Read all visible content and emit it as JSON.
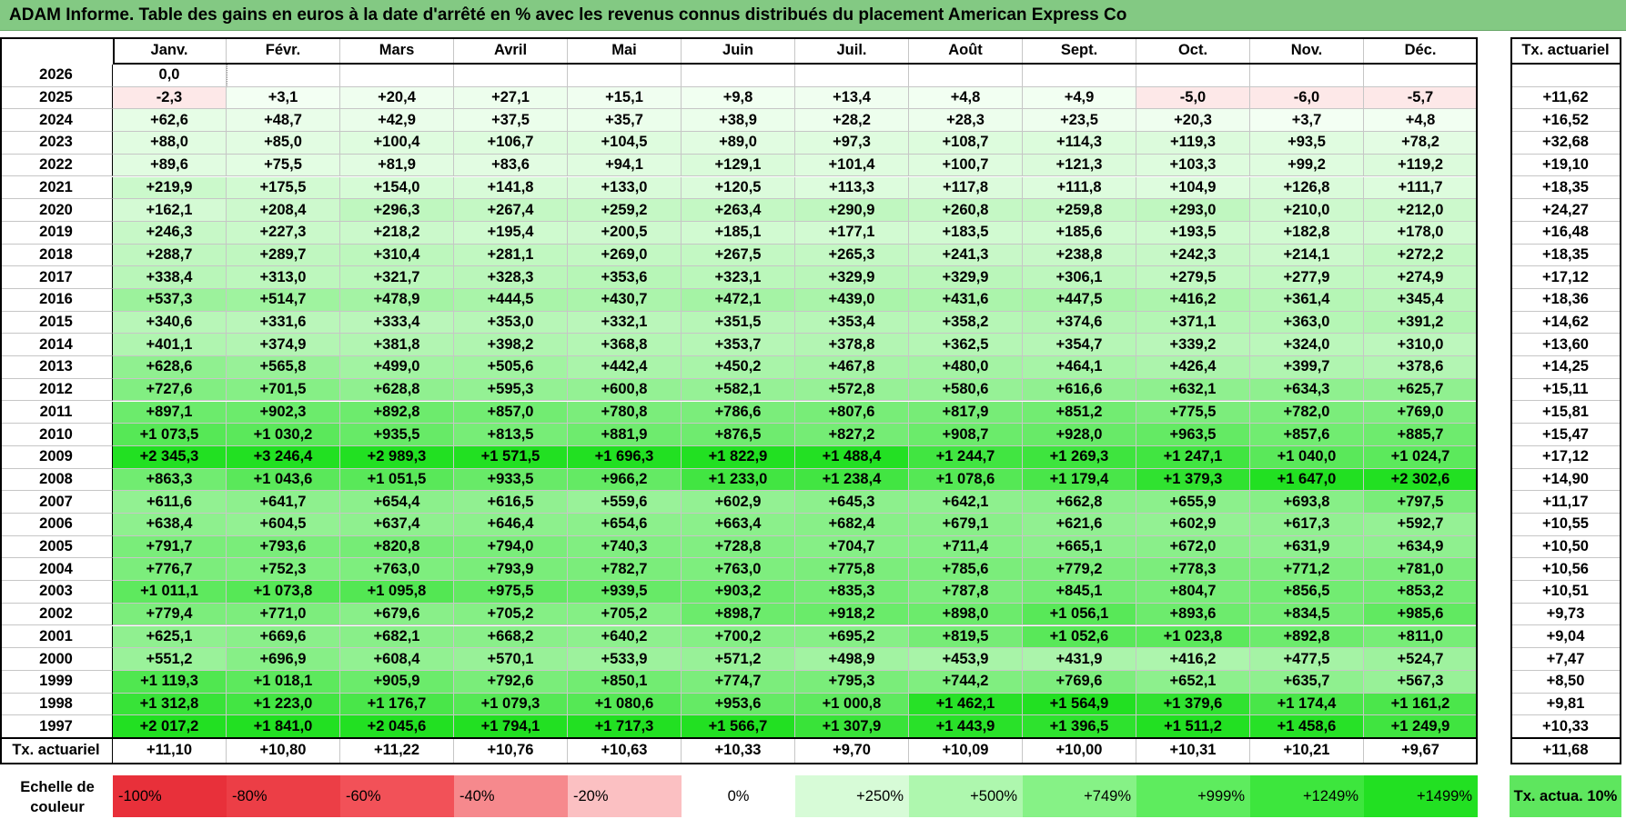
{
  "title": "ADAM Informe. Table des gains en euros à la date d'arrêté en % avec les revenus connus distribués du placement American Express Co",
  "months": [
    "Janv.",
    "Févr.",
    "Mars",
    "Avril",
    "Mai",
    "Juin",
    "Juil.",
    "Août",
    "Sept.",
    "Oct.",
    "Nov.",
    "Déc."
  ],
  "annual_header": "Tx. actuariel",
  "footer_label": "Tx. actuariel",
  "rows": [
    {
      "year": "2026",
      "vals": [
        "0,0",
        null,
        null,
        null,
        null,
        null,
        null,
        null,
        null,
        null,
        null,
        null
      ],
      "rate": ""
    },
    {
      "year": "2025",
      "vals": [
        "-2,3",
        "+3,1",
        "+20,4",
        "+27,1",
        "+15,1",
        "+9,8",
        "+13,4",
        "+4,8",
        "+4,9",
        "-5,0",
        "-6,0",
        "-5,7"
      ],
      "rate": "+11,62"
    },
    {
      "year": "2024",
      "vals": [
        "+62,6",
        "+48,7",
        "+42,9",
        "+37,5",
        "+35,7",
        "+38,9",
        "+28,2",
        "+28,3",
        "+23,5",
        "+20,3",
        "+3,7",
        "+4,8"
      ],
      "rate": "+16,52"
    },
    {
      "year": "2023",
      "vals": [
        "+88,0",
        "+85,0",
        "+100,4",
        "+106,7",
        "+104,5",
        "+89,0",
        "+97,3",
        "+108,7",
        "+114,3",
        "+119,3",
        "+93,5",
        "+78,2"
      ],
      "rate": "+32,68"
    },
    {
      "year": "2022",
      "vals": [
        "+89,6",
        "+75,5",
        "+81,9",
        "+83,6",
        "+94,1",
        "+129,1",
        "+101,4",
        "+100,7",
        "+121,3",
        "+103,3",
        "+99,2",
        "+119,2"
      ],
      "rate": "+19,10"
    },
    {
      "year": "2021",
      "vals": [
        "+219,9",
        "+175,5",
        "+154,0",
        "+141,8",
        "+133,0",
        "+120,5",
        "+113,3",
        "+117,8",
        "+111,8",
        "+104,9",
        "+126,8",
        "+111,7"
      ],
      "rate": "+18,35"
    },
    {
      "year": "2020",
      "vals": [
        "+162,1",
        "+208,4",
        "+296,3",
        "+267,4",
        "+259,2",
        "+263,4",
        "+290,9",
        "+260,8",
        "+259,8",
        "+293,0",
        "+210,0",
        "+212,0"
      ],
      "rate": "+24,27"
    },
    {
      "year": "2019",
      "vals": [
        "+246,3",
        "+227,3",
        "+218,2",
        "+195,4",
        "+200,5",
        "+185,1",
        "+177,1",
        "+183,5",
        "+185,6",
        "+193,5",
        "+182,8",
        "+178,0"
      ],
      "rate": "+16,48"
    },
    {
      "year": "2018",
      "vals": [
        "+288,7",
        "+289,7",
        "+310,4",
        "+281,1",
        "+269,0",
        "+267,5",
        "+265,3",
        "+241,3",
        "+238,8",
        "+242,3",
        "+214,1",
        "+272,2"
      ],
      "rate": "+18,35"
    },
    {
      "year": "2017",
      "vals": [
        "+338,4",
        "+313,0",
        "+321,7",
        "+328,3",
        "+353,6",
        "+323,1",
        "+329,9",
        "+329,9",
        "+306,1",
        "+279,5",
        "+277,9",
        "+274,9"
      ],
      "rate": "+17,12"
    },
    {
      "year": "2016",
      "vals": [
        "+537,3",
        "+514,7",
        "+478,9",
        "+444,5",
        "+430,7",
        "+472,1",
        "+439,0",
        "+431,6",
        "+447,5",
        "+416,2",
        "+361,4",
        "+345,4"
      ],
      "rate": "+18,36"
    },
    {
      "year": "2015",
      "vals": [
        "+340,6",
        "+331,6",
        "+333,4",
        "+353,0",
        "+332,1",
        "+351,5",
        "+353,4",
        "+358,2",
        "+374,6",
        "+371,1",
        "+363,0",
        "+391,2"
      ],
      "rate": "+14,62"
    },
    {
      "year": "2014",
      "vals": [
        "+401,1",
        "+374,9",
        "+381,8",
        "+398,2",
        "+368,8",
        "+353,7",
        "+378,8",
        "+362,5",
        "+354,7",
        "+339,2",
        "+324,0",
        "+310,0"
      ],
      "rate": "+13,60"
    },
    {
      "year": "2013",
      "vals": [
        "+628,6",
        "+565,8",
        "+499,0",
        "+505,6",
        "+442,4",
        "+450,2",
        "+467,8",
        "+480,0",
        "+464,1",
        "+426,4",
        "+399,7",
        "+378,6"
      ],
      "rate": "+14,25"
    },
    {
      "year": "2012",
      "vals": [
        "+727,6",
        "+701,5",
        "+628,8",
        "+595,3",
        "+600,8",
        "+582,1",
        "+572,8",
        "+580,6",
        "+616,6",
        "+632,1",
        "+634,3",
        "+625,7"
      ],
      "rate": "+15,11"
    },
    {
      "year": "2011",
      "vals": [
        "+897,1",
        "+902,3",
        "+892,8",
        "+857,0",
        "+780,8",
        "+786,6",
        "+807,6",
        "+817,9",
        "+851,2",
        "+775,5",
        "+782,0",
        "+769,0"
      ],
      "rate": "+15,81"
    },
    {
      "year": "2010",
      "vals": [
        "+1 073,5",
        "+1 030,2",
        "+935,5",
        "+813,5",
        "+881,9",
        "+876,5",
        "+827,2",
        "+908,7",
        "+928,0",
        "+963,5",
        "+857,6",
        "+885,7"
      ],
      "rate": "+15,47"
    },
    {
      "year": "2009",
      "vals": [
        "+2 345,3",
        "+3 246,4",
        "+2 989,3",
        "+1 571,5",
        "+1 696,3",
        "+1 822,9",
        "+1 488,4",
        "+1 244,7",
        "+1 269,3",
        "+1 247,1",
        "+1 040,0",
        "+1 024,7"
      ],
      "rate": "+17,12"
    },
    {
      "year": "2008",
      "vals": [
        "+863,3",
        "+1 043,6",
        "+1 051,5",
        "+933,5",
        "+966,2",
        "+1 233,0",
        "+1 238,4",
        "+1 078,6",
        "+1 179,4",
        "+1 379,3",
        "+1 647,0",
        "+2 302,6"
      ],
      "rate": "+14,90"
    },
    {
      "year": "2007",
      "vals": [
        "+611,6",
        "+641,7",
        "+654,4",
        "+616,5",
        "+559,6",
        "+602,9",
        "+645,3",
        "+642,1",
        "+662,8",
        "+655,9",
        "+693,8",
        "+797,5"
      ],
      "rate": "+11,17"
    },
    {
      "year": "2006",
      "vals": [
        "+638,4",
        "+604,5",
        "+637,4",
        "+646,4",
        "+654,6",
        "+663,4",
        "+682,4",
        "+679,1",
        "+621,6",
        "+602,9",
        "+617,3",
        "+592,7"
      ],
      "rate": "+10,55"
    },
    {
      "year": "2005",
      "vals": [
        "+791,7",
        "+793,6",
        "+820,8",
        "+794,0",
        "+740,3",
        "+728,8",
        "+704,7",
        "+711,4",
        "+665,1",
        "+672,0",
        "+631,9",
        "+634,9"
      ],
      "rate": "+10,50"
    },
    {
      "year": "2004",
      "vals": [
        "+776,7",
        "+752,3",
        "+763,0",
        "+793,9",
        "+782,7",
        "+763,0",
        "+775,8",
        "+785,6",
        "+779,2",
        "+778,3",
        "+771,2",
        "+781,0"
      ],
      "rate": "+10,56"
    },
    {
      "year": "2003",
      "vals": [
        "+1 011,1",
        "+1 073,8",
        "+1 095,8",
        "+975,5",
        "+939,5",
        "+903,2",
        "+835,3",
        "+787,8",
        "+845,1",
        "+804,7",
        "+856,5",
        "+853,2"
      ],
      "rate": "+10,51"
    },
    {
      "year": "2002",
      "vals": [
        "+779,4",
        "+771,0",
        "+679,6",
        "+705,2",
        "+705,2",
        "+898,7",
        "+918,2",
        "+898,0",
        "+1 056,1",
        "+893,6",
        "+834,5",
        "+985,6"
      ],
      "rate": "+9,73"
    },
    {
      "year": "2001",
      "vals": [
        "+625,1",
        "+669,6",
        "+682,1",
        "+668,2",
        "+640,2",
        "+700,2",
        "+695,2",
        "+819,5",
        "+1 052,6",
        "+1 023,8",
        "+892,8",
        "+811,0"
      ],
      "rate": "+9,04"
    },
    {
      "year": "2000",
      "vals": [
        "+551,2",
        "+696,9",
        "+608,4",
        "+570,1",
        "+533,9",
        "+571,2",
        "+498,9",
        "+453,9",
        "+431,9",
        "+416,2",
        "+477,5",
        "+524,7"
      ],
      "rate": "+7,47"
    },
    {
      "year": "1999",
      "vals": [
        "+1 119,3",
        "+1 018,1",
        "+905,9",
        "+792,6",
        "+850,1",
        "+774,7",
        "+795,3",
        "+744,2",
        "+769,6",
        "+652,1",
        "+635,7",
        "+567,3"
      ],
      "rate": "+8,50"
    },
    {
      "year": "1998",
      "vals": [
        "+1 312,8",
        "+1 223,0",
        "+1 176,7",
        "+1 079,3",
        "+1 080,6",
        "+953,6",
        "+1 000,8",
        "+1 462,1",
        "+1 564,9",
        "+1 379,6",
        "+1 174,4",
        "+1 161,2"
      ],
      "rate": "+9,81"
    },
    {
      "year": "1997",
      "vals": [
        "+2 017,2",
        "+1 841,0",
        "+2 045,6",
        "+1 794,1",
        "+1 717,3",
        "+1 566,7",
        "+1 307,9",
        "+1 443,9",
        "+1 396,5",
        "+1 511,2",
        "+1 458,6",
        "+1 249,9"
      ],
      "rate": "+10,33"
    }
  ],
  "footer_rates": [
    "+11,10",
    "+10,80",
    "+11,22",
    "+10,76",
    "+10,63",
    "+10,33",
    "+9,70",
    "+10,09",
    "+10,00",
    "+10,31",
    "+10,21",
    "+9,67"
  ],
  "footer_total": "+11,68",
  "legend": {
    "label": "Echelle de couleur",
    "items": [
      {
        "text": "-100%",
        "color": "#e8303a",
        "align": "left"
      },
      {
        "text": "-80%",
        "color": "#ec3e46",
        "align": "left"
      },
      {
        "text": "-60%",
        "color": "#f25158",
        "align": "left"
      },
      {
        "text": "-40%",
        "color": "#f6898d",
        "align": "left"
      },
      {
        "text": "-20%",
        "color": "#fbc0c2",
        "align": "left"
      },
      {
        "text": "0%",
        "color": "#ffffff",
        "align": "center"
      },
      {
        "text": "+250%",
        "color": "#d7fbd7",
        "align": "right"
      },
      {
        "text": "+500%",
        "color": "#aef7ae",
        "align": "right"
      },
      {
        "text": "+749%",
        "color": "#86f286",
        "align": "right"
      },
      {
        "text": "+999%",
        "color": "#5eec5e",
        "align": "right"
      },
      {
        "text": "+1249%",
        "color": "#3de63d",
        "align": "right"
      },
      {
        "text": "+1499%",
        "color": "#22e022",
        "align": "right"
      }
    ],
    "target": "Tx. actua. 10%",
    "target_color": "#5ee65e"
  },
  "colors": {
    "title_bar": "#83c983",
    "negative_light": "#fde8e8",
    "positive_scale_start": "#f4fff4",
    "positive_scale_end": "#22e022"
  },
  "chart_data": {
    "type": "table",
    "title": "ADAM Informe. Table des gains en euros à la date d'arrêté en % avec les revenus connus distribués du placement American Express Co",
    "columns": [
      "Janv.",
      "Févr.",
      "Mars",
      "Avril",
      "Mai",
      "Juin",
      "Juil.",
      "Août",
      "Sept.",
      "Oct.",
      "Nov.",
      "Déc.",
      "Tx. actuariel"
    ],
    "note": "values are the rows[] entries above (gain % per start month and year, annual actuarial rate in last column)"
  }
}
